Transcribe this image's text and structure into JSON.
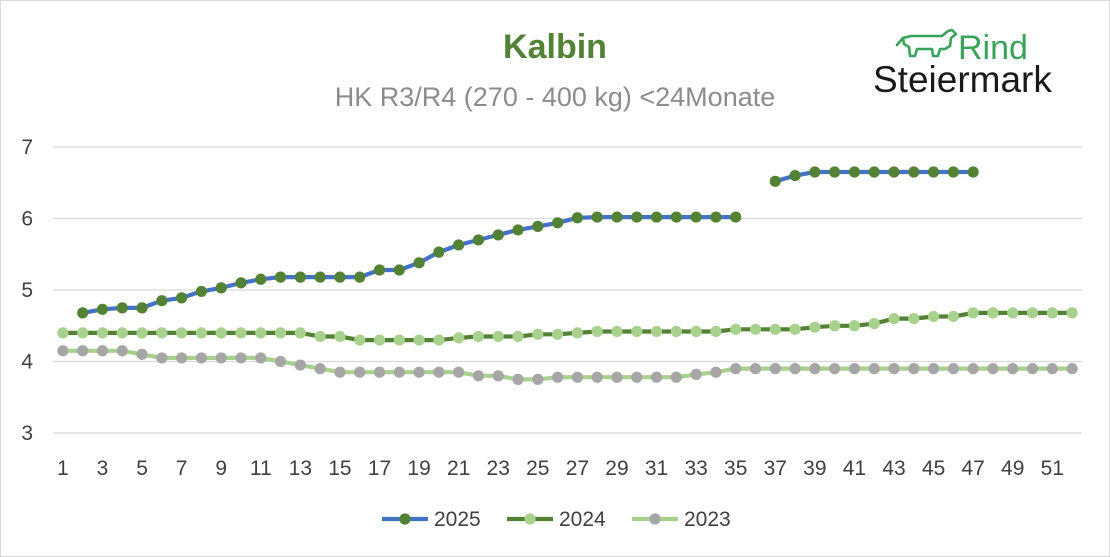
{
  "chart_data": {
    "type": "line",
    "title": "Kalbin",
    "subtitle": "HK R3/R4 (270 - 400 kg) <24Monate",
    "xlabel": "",
    "ylabel": "",
    "x": [
      1,
      2,
      3,
      4,
      5,
      6,
      7,
      8,
      9,
      10,
      11,
      12,
      13,
      14,
      15,
      16,
      17,
      18,
      19,
      20,
      21,
      22,
      23,
      24,
      25,
      26,
      27,
      28,
      29,
      30,
      31,
      32,
      33,
      34,
      35,
      36,
      37,
      38,
      39,
      40,
      41,
      42,
      43,
      44,
      45,
      46,
      47,
      48,
      49,
      50,
      51,
      52
    ],
    "x_tick_labels": [
      "1",
      "3",
      "5",
      "7",
      "9",
      "11",
      "13",
      "15",
      "17",
      "19",
      "21",
      "23",
      "25",
      "27",
      "29",
      "31",
      "33",
      "35",
      "37",
      "39",
      "41",
      "43",
      "45",
      "47",
      "49",
      "51"
    ],
    "y_ticks": [
      3,
      4,
      5,
      6,
      7
    ],
    "ylim": [
      3,
      7
    ],
    "grid": "horizontal",
    "legend_position": "bottom",
    "series": [
      {
        "name": "2025",
        "line_color": "#4472c4",
        "marker_color": "#548235",
        "values": [
          null,
          4.68,
          4.73,
          4.75,
          4.75,
          4.85,
          4.89,
          4.98,
          5.03,
          5.1,
          5.15,
          5.18,
          5.18,
          5.18,
          5.18,
          5.18,
          5.28,
          5.28,
          5.38,
          5.53,
          5.63,
          5.7,
          5.77,
          5.84,
          5.89,
          5.94,
          6.01,
          6.02,
          6.02,
          6.02,
          6.02,
          6.02,
          6.02,
          6.02,
          6.02,
          null,
          6.52,
          6.6,
          6.65,
          6.65,
          6.65,
          6.65,
          6.65,
          6.65,
          6.65,
          6.65,
          6.65,
          null,
          null,
          null,
          null,
          null
        ]
      },
      {
        "name": "2024",
        "line_color": "#548235",
        "marker_color": "#a9d18e",
        "values": [
          4.4,
          4.4,
          4.4,
          4.4,
          4.4,
          4.4,
          4.4,
          4.4,
          4.4,
          4.4,
          4.4,
          4.4,
          4.4,
          4.35,
          4.35,
          4.3,
          4.3,
          4.3,
          4.3,
          4.3,
          4.33,
          4.35,
          4.35,
          4.35,
          4.38,
          4.38,
          4.4,
          4.42,
          4.42,
          4.42,
          4.42,
          4.42,
          4.42,
          4.42,
          4.45,
          4.45,
          4.45,
          4.45,
          4.48,
          4.5,
          4.5,
          4.53,
          4.6,
          4.6,
          4.63,
          4.63,
          4.68,
          4.68,
          4.68,
          4.68,
          4.68,
          4.68
        ]
      },
      {
        "name": "2023",
        "line_color": "#a9d18e",
        "marker_color": "#a6a6a6",
        "values": [
          4.15,
          4.15,
          4.15,
          4.15,
          4.1,
          4.05,
          4.05,
          4.05,
          4.05,
          4.05,
          4.05,
          4.0,
          3.95,
          3.9,
          3.85,
          3.85,
          3.85,
          3.85,
          3.85,
          3.85,
          3.85,
          3.8,
          3.8,
          3.75,
          3.75,
          3.78,
          3.78,
          3.78,
          3.78,
          3.78,
          3.78,
          3.78,
          3.82,
          3.85,
          3.9,
          3.9,
          3.9,
          3.9,
          3.9,
          3.9,
          3.9,
          3.9,
          3.9,
          3.9,
          3.9,
          3.9,
          3.9,
          3.9,
          3.9,
          3.9,
          3.9,
          3.9
        ]
      }
    ],
    "colors": {
      "gridline": "#d9d9d9",
      "title": "#538135",
      "subtitle": "#8c8c8c"
    }
  },
  "logo": {
    "line1": "Rind",
    "line2": "Steiermark",
    "icon": "cow-icon",
    "color": "#3aa35b"
  }
}
